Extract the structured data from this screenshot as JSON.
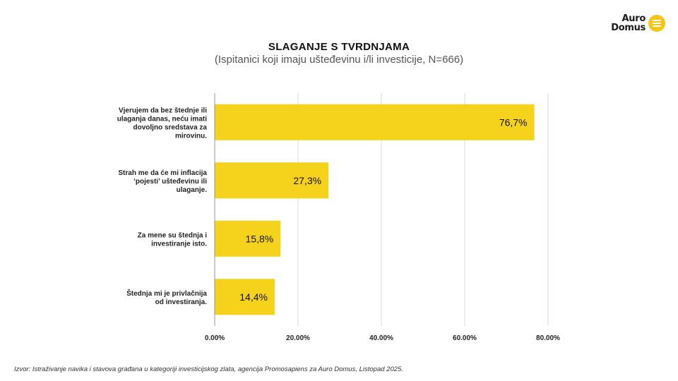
{
  "logo": {
    "line1": "Auro",
    "line2": "Domus",
    "icon": "menu-lines-icon",
    "color": "#f5c518"
  },
  "chart_data": {
    "type": "bar",
    "orientation": "horizontal",
    "title": "SLAGANJE S TVRDNJAMA",
    "subtitle": "(Ispitanici koji imaju ušteđevinu i/li investicije, N=666)",
    "categories": [
      [
        "Vjerujem da bez štednje ili",
        "ulaganja danas, neću imati",
        "dovoljno sredstava za",
        "mirovinu."
      ],
      [
        "Strah me da će mi inflacija",
        "‘pojesti’ ušteđevinu ili",
        "ulaganje."
      ],
      [
        "Za mene su štednja i",
        "investiranje isto."
      ],
      [
        "Štednja mi je privlačnija",
        "od investiranja."
      ]
    ],
    "values": [
      76.7,
      27.3,
      15.8,
      14.4
    ],
    "data_labels": [
      "76,7%",
      "27,3%",
      "15,8%",
      "14,4%"
    ],
    "xlim": [
      0,
      80
    ],
    "xticks": [
      0,
      20,
      40,
      60,
      80
    ],
    "xtick_labels": [
      "0.00%",
      "20.00%",
      "40.00%",
      "60.00%",
      "80.00%"
    ],
    "grid": true,
    "bar_color": "#f5d21c",
    "grid_color": "#d9d9d9",
    "axis_color": "#999999"
  },
  "footer": "Izvor: Istraživanje navika i stavova građana u kategoriji investicijskog zlata, agencija Promosapiens za Auro Domus, Listopad 2025."
}
